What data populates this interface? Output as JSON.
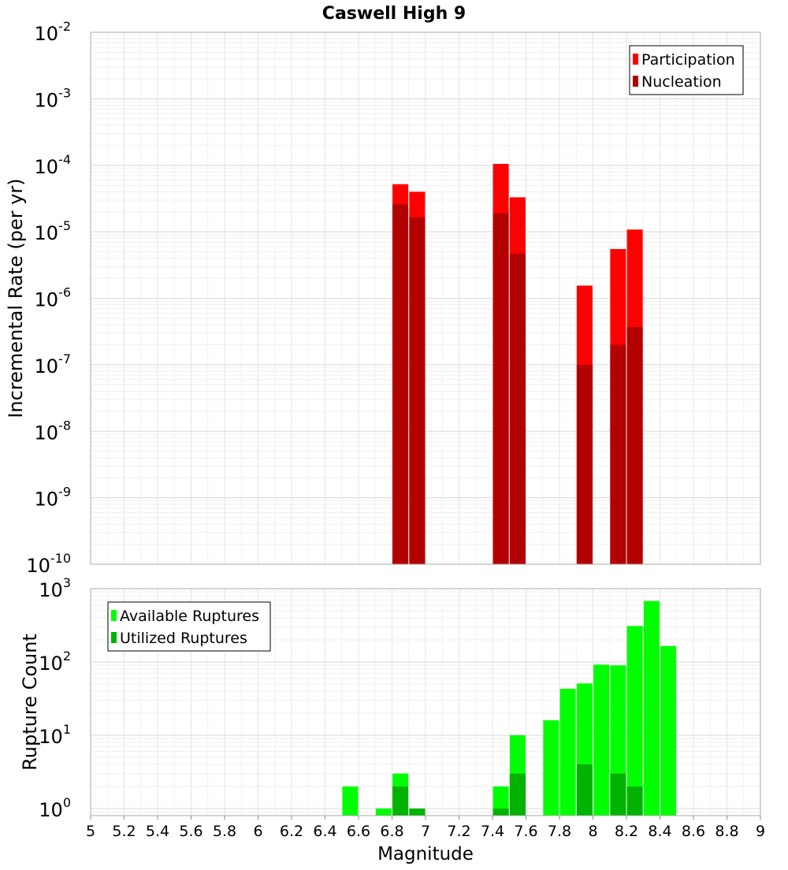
{
  "title": "Caswell High 9",
  "colors": {
    "participation": "#ff0000",
    "nucleation": "#b30000",
    "available": "#00ff00",
    "utilized": "#00b300",
    "grid": "#e4e4e4",
    "frame": "#aaaaaa"
  },
  "chart_data": [
    {
      "type": "bar",
      "panel": "rates",
      "title": "Caswell High 9",
      "xlabel": "",
      "ylabel": "Incremental Rate (per yr)",
      "yscale": "log",
      "ylim": [
        1e-10,
        0.01
      ],
      "xlim": [
        5,
        9
      ],
      "yticks": [
        {
          "base": "10",
          "exp": "-2",
          "value": 0.01
        },
        {
          "base": "10",
          "exp": "-3",
          "value": 0.001
        },
        {
          "base": "10",
          "exp": "-4",
          "value": 0.0001
        },
        {
          "base": "10",
          "exp": "-5",
          "value": 1e-05
        },
        {
          "base": "10",
          "exp": "-6",
          "value": 1e-06
        },
        {
          "base": "10",
          "exp": "-7",
          "value": 1e-07
        },
        {
          "base": "10",
          "exp": "-8",
          "value": 1e-08
        },
        {
          "base": "10",
          "exp": "-9",
          "value": 1e-09
        },
        {
          "base": "10",
          "exp": "-10",
          "value": 1e-10
        }
      ],
      "legend": {
        "position": "top-right",
        "entries": [
          {
            "label": "Participation",
            "color": "#ff0000"
          },
          {
            "label": "Nucleation",
            "color": "#b30000"
          }
        ]
      },
      "x": [
        6.85,
        6.95,
        7.45,
        7.55,
        7.95,
        8.15,
        8.25
      ],
      "series": [
        {
          "name": "Participation",
          "color": "#ff0000",
          "values": [
            5.2e-05,
            4e-05,
            0.000105,
            3.3e-05,
            1.55e-06,
            5.5e-06,
            1.08e-05
          ]
        },
        {
          "name": "Nucleation",
          "color": "#b30000",
          "values": [
            2.6e-05,
            1.65e-05,
            1.9e-05,
            4.7e-06,
            1e-07,
            2e-07,
            3.7e-07
          ]
        }
      ]
    },
    {
      "type": "bar",
      "panel": "counts",
      "xlabel": "Magnitude",
      "ylabel": "Rupture Count",
      "yscale": "log",
      "ylim": [
        0.8,
        1000
      ],
      "xlim": [
        5,
        9
      ],
      "xticks": [
        "5",
        "5.2",
        "5.4",
        "5.6",
        "5.8",
        "6",
        "6.2",
        "6.4",
        "6.6",
        "6.8",
        "7",
        "7.2",
        "7.4",
        "7.6",
        "7.8",
        "8",
        "8.2",
        "8.4",
        "8.6",
        "8.8",
        "9"
      ],
      "yticks": [
        {
          "base": "10",
          "exp": "3",
          "value": 1000
        },
        {
          "base": "10",
          "exp": "2",
          "value": 100
        },
        {
          "base": "10",
          "exp": "1",
          "value": 10
        },
        {
          "base": "10",
          "exp": "0",
          "value": 1
        }
      ],
      "legend": {
        "position": "top-left",
        "entries": [
          {
            "label": "Available Ruptures",
            "color": "#00ff00"
          },
          {
            "label": "Utilized Ruptures",
            "color": "#00b300"
          }
        ]
      },
      "x": [
        6.55,
        6.75,
        6.85,
        6.95,
        7.45,
        7.55,
        7.75,
        7.85,
        7.95,
        8.05,
        8.15,
        8.25,
        8.35,
        8.45
      ],
      "series": [
        {
          "name": "Available Ruptures",
          "color": "#00ff00",
          "values": [
            2,
            1,
            3,
            1,
            2,
            10,
            16,
            43,
            51,
            92,
            90,
            310,
            680,
            165
          ]
        },
        {
          "name": "Utilized Ruptures",
          "color": "#00b300",
          "values": [
            0,
            0,
            2,
            1,
            1,
            3,
            0,
            0,
            4,
            0,
            3,
            2,
            0,
            0
          ]
        }
      ]
    }
  ]
}
